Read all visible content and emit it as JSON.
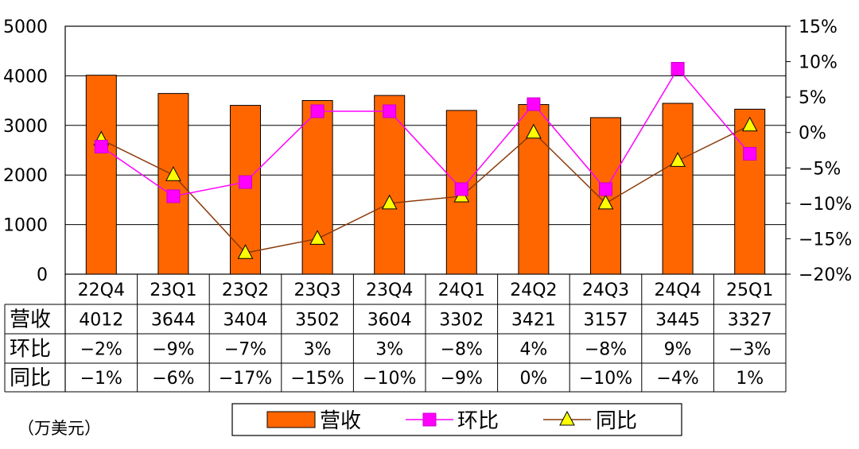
{
  "chart_data": {
    "type": "bar",
    "categories": [
      "22Q4",
      "23Q1",
      "23Q2",
      "23Q3",
      "23Q4",
      "24Q1",
      "24Q2",
      "24Q3",
      "24Q4",
      "25Q1"
    ],
    "series": [
      {
        "name": "营收",
        "type": "bar",
        "axis": "left",
        "color": "#FF6600",
        "values": [
          4012,
          3644,
          3404,
          3502,
          3604,
          3302,
          3421,
          3157,
          3445,
          3327
        ]
      },
      {
        "name": "环比",
        "type": "line",
        "axis": "right",
        "color": "#FF00FF",
        "marker": "square",
        "values": [
          -2,
          -9,
          -7,
          3,
          3,
          -8,
          4,
          -8,
          9,
          -3
        ]
      },
      {
        "name": "同比",
        "type": "line",
        "axis": "right",
        "color": "#8B3A0A",
        "marker": "triangle",
        "values": [
          -1,
          -6,
          -17,
          -15,
          -10,
          -9,
          0,
          -10,
          -4,
          1
        ]
      }
    ],
    "y_left": {
      "ylim": [
        0,
        5000
      ],
      "ticks": [
        "0",
        "1000",
        "2000",
        "3000",
        "4000",
        "5000"
      ]
    },
    "y_right": {
      "ylim": [
        -20,
        15
      ],
      "ticks": [
        "−20%",
        "−15%",
        "−10%",
        "−5%",
        "0%",
        "5%",
        "10%",
        "15%"
      ]
    },
    "unit": "（万美元）",
    "table": {
      "rows": [
        {
          "label": "营收",
          "cells": [
            "4012",
            "3644",
            "3404",
            "3502",
            "3604",
            "3302",
            "3421",
            "3157",
            "3445",
            "3327"
          ]
        },
        {
          "label": "环比",
          "cells": [
            "−2%",
            "−9%",
            "−7%",
            "3%",
            "3%",
            "−8%",
            "4%",
            "−8%",
            "9%",
            "−3%"
          ]
        },
        {
          "label": "同比",
          "cells": [
            "−1%",
            "−6%",
            "−17%",
            "−15%",
            "−10%",
            "−9%",
            "0%",
            "−10%",
            "−4%",
            "1%"
          ]
        }
      ]
    },
    "legend": [
      "营收",
      "环比",
      "同比"
    ],
    "grid": true
  }
}
